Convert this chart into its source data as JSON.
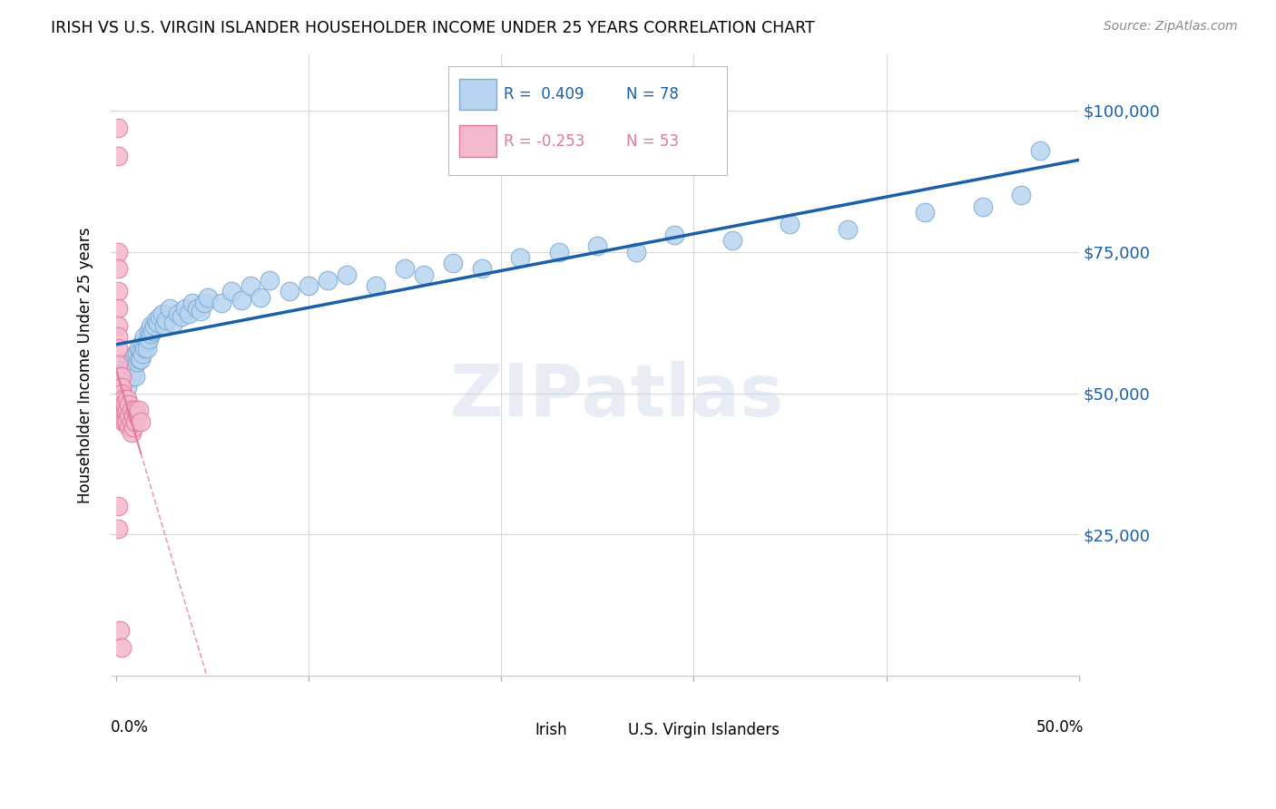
{
  "title": "IRISH VS U.S. VIRGIN ISLANDER HOUSEHOLDER INCOME UNDER 25 YEARS CORRELATION CHART",
  "source": "Source: ZipAtlas.com",
  "ylabel": "Householder Income Under 25 years",
  "xlim": [
    0.0,
    0.5
  ],
  "ylim": [
    0,
    110000
  ],
  "irish_color": "#b8d4f0",
  "irish_edge_color": "#7aaad4",
  "usvi_color": "#f4b8ce",
  "usvi_edge_color": "#e07898",
  "trendline_irish_color": "#1a5fa8",
  "trendline_usvi_color": "#e07898",
  "background_color": "#ffffff",
  "grid_color": "#d8d8d8",
  "watermark": "ZIPatlas",
  "irish_R": 0.409,
  "irish_N": 78,
  "usvi_R": -0.253,
  "usvi_N": 53,
  "irish_x": [
    0.002,
    0.003,
    0.003,
    0.004,
    0.005,
    0.005,
    0.006,
    0.006,
    0.007,
    0.007,
    0.008,
    0.008,
    0.009,
    0.009,
    0.01,
    0.01,
    0.011,
    0.011,
    0.012,
    0.012,
    0.013,
    0.013,
    0.014,
    0.014,
    0.015,
    0.015,
    0.016,
    0.016,
    0.017,
    0.017,
    0.018,
    0.018,
    0.019,
    0.02,
    0.021,
    0.022,
    0.023,
    0.024,
    0.025,
    0.026,
    0.028,
    0.03,
    0.032,
    0.034,
    0.036,
    0.038,
    0.04,
    0.042,
    0.044,
    0.046,
    0.048,
    0.055,
    0.06,
    0.065,
    0.07,
    0.075,
    0.08,
    0.09,
    0.1,
    0.11,
    0.12,
    0.135,
    0.15,
    0.16,
    0.175,
    0.19,
    0.21,
    0.23,
    0.25,
    0.27,
    0.29,
    0.32,
    0.35,
    0.38,
    0.42,
    0.45,
    0.47,
    0.48
  ],
  "irish_y": [
    52000,
    53000,
    51500,
    54000,
    52500,
    53500,
    55000,
    51000,
    54500,
    56000,
    53000,
    55000,
    56500,
    54000,
    57000,
    53000,
    55500,
    57000,
    56000,
    58000,
    57500,
    56000,
    59000,
    57000,
    58000,
    60000,
    59000,
    58000,
    61000,
    59500,
    60500,
    62000,
    61000,
    62000,
    63000,
    62500,
    63500,
    64000,
    62000,
    63000,
    65000,
    62500,
    64000,
    63500,
    65000,
    64000,
    66000,
    65000,
    64500,
    66000,
    67000,
    66000,
    68000,
    66500,
    69000,
    67000,
    70000,
    68000,
    69000,
    70000,
    71000,
    69000,
    72000,
    71000,
    73000,
    72000,
    74000,
    75000,
    76000,
    75000,
    78000,
    77000,
    80000,
    79000,
    82000,
    83000,
    85000,
    93000
  ],
  "usvi_x": [
    0.001,
    0.001,
    0.001,
    0.001,
    0.001,
    0.001,
    0.001,
    0.001,
    0.001,
    0.001,
    0.002,
    0.002,
    0.002,
    0.002,
    0.002,
    0.002,
    0.002,
    0.002,
    0.002,
    0.003,
    0.003,
    0.003,
    0.003,
    0.003,
    0.003,
    0.003,
    0.004,
    0.004,
    0.004,
    0.004,
    0.005,
    0.005,
    0.005,
    0.006,
    0.006,
    0.006,
    0.007,
    0.007,
    0.007,
    0.008,
    0.008,
    0.008,
    0.009,
    0.009,
    0.01,
    0.01,
    0.011,
    0.012,
    0.013,
    0.001,
    0.001,
    0.002,
    0.003
  ],
  "usvi_y": [
    97000,
    92000,
    75000,
    72000,
    68000,
    65000,
    62000,
    60000,
    58000,
    55000,
    53000,
    51000,
    49000,
    48000,
    46000,
    52000,
    50000,
    48000,
    46000,
    53000,
    51000,
    49000,
    47000,
    50000,
    48000,
    46000,
    49000,
    47000,
    45000,
    48000,
    47000,
    45000,
    48000,
    49000,
    47000,
    45000,
    48000,
    46000,
    44000,
    47000,
    45000,
    43000,
    46000,
    44000,
    47000,
    45000,
    46000,
    47000,
    45000,
    30000,
    26000,
    8000,
    5000
  ]
}
